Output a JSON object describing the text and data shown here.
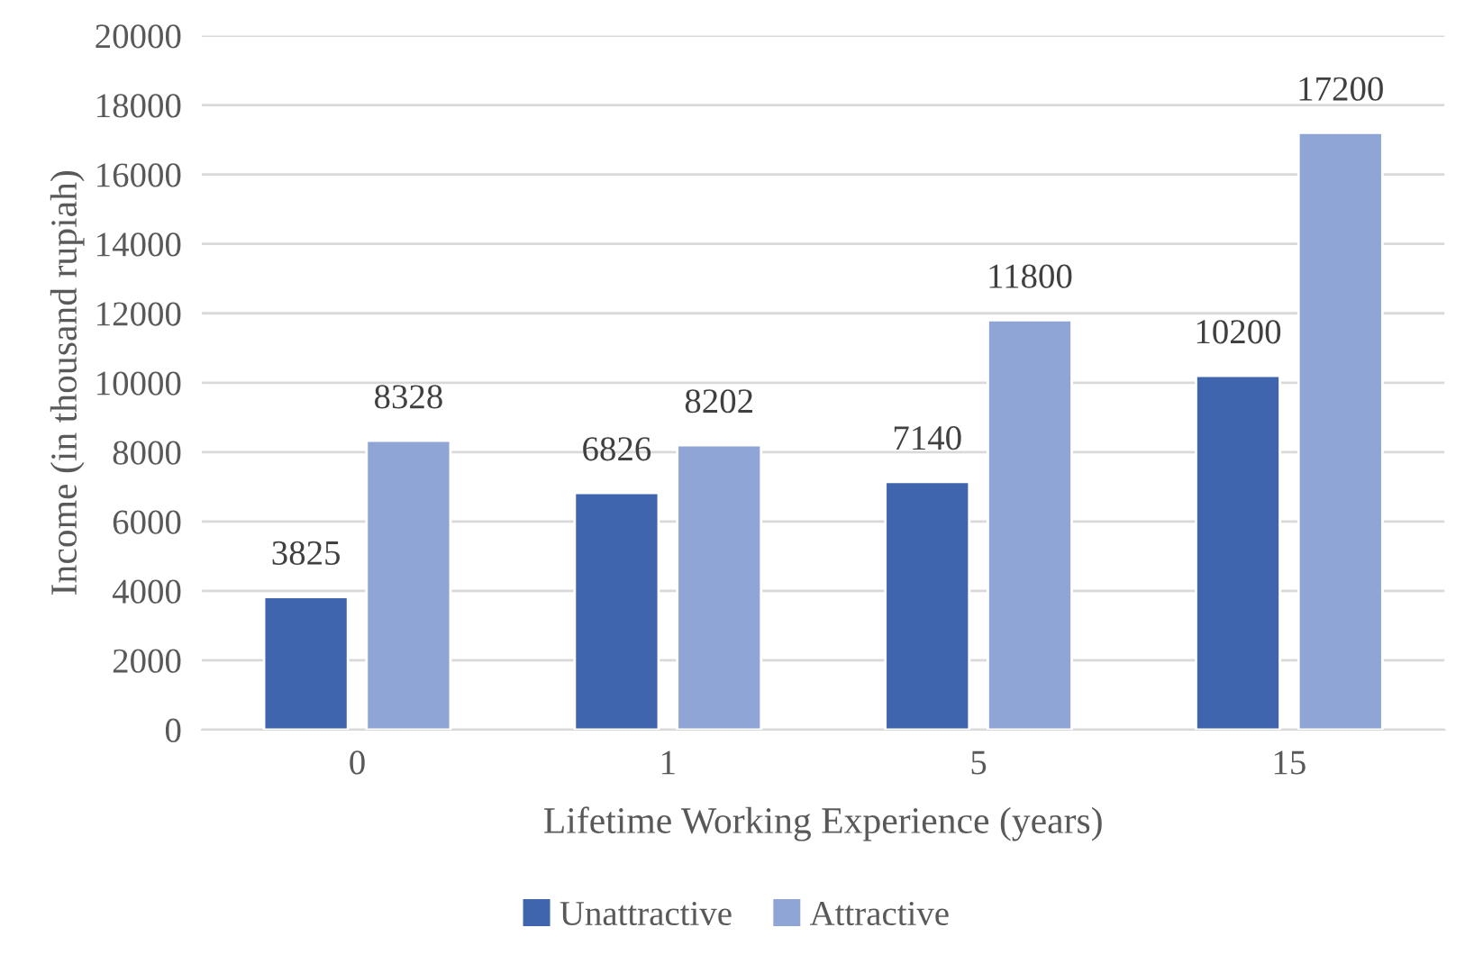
{
  "chart_data": {
    "type": "bar",
    "xlabel": "Lifetime Working Experience (years)",
    "ylabel": "Income (in thousand rupiah)",
    "categories": [
      "0",
      "1",
      "5",
      "15"
    ],
    "series": [
      {
        "name": "Unattractive",
        "color": "#3f65ae",
        "values": [
          3825,
          6826,
          7140,
          10200
        ]
      },
      {
        "name": "Attractive",
        "color": "#8fa5d6",
        "values": [
          8328,
          8202,
          11800,
          17200
        ]
      }
    ],
    "ylim": [
      0,
      20000
    ],
    "yticks": [
      0,
      2000,
      4000,
      6000,
      8000,
      10000,
      12000,
      14000,
      16000,
      18000,
      20000
    ],
    "grid": "y",
    "legend": "bottom",
    "data_labels": true
  }
}
